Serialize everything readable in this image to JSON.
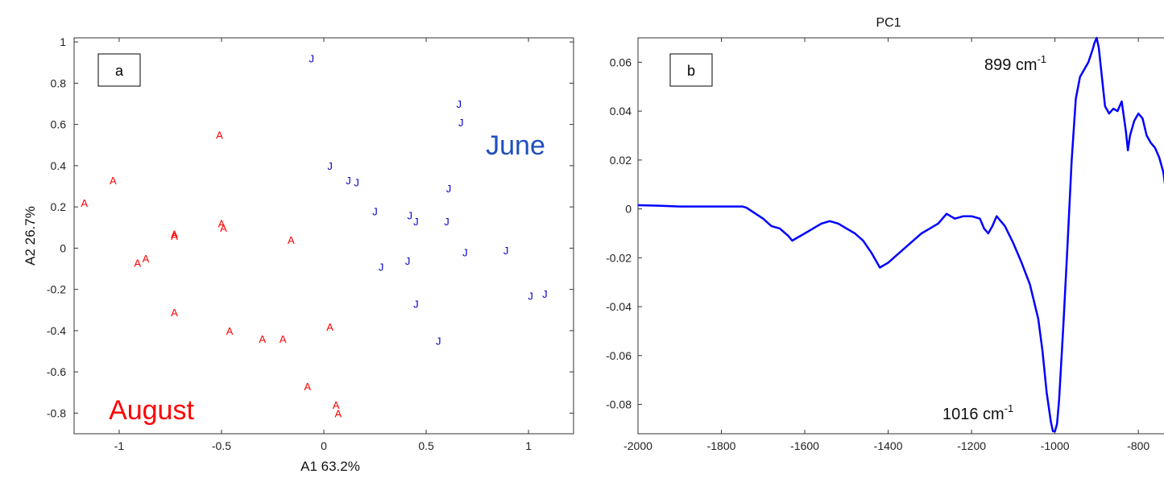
{
  "chart_data": [
    {
      "type": "scatter",
      "panel_label": "a",
      "xlabel": "A1  63.2%",
      "ylabel": "A2  26.7%",
      "xticks": [
        "-1",
        "-0.5",
        "0",
        "0.5",
        "1"
      ],
      "yticks": [
        "-0.8",
        "-0.6",
        "-0.4",
        "-0.2",
        "0",
        "0.2",
        "0.4",
        "0.6",
        "0.8",
        "1"
      ],
      "xlim": [
        -1.22,
        1.22
      ],
      "ylim": [
        -0.9,
        1.02
      ],
      "colors": {
        "August": "#ff0000",
        "June": "#0000cc"
      },
      "series": [
        {
          "name": "August",
          "marker": "A",
          "color": "#ff0000",
          "points": [
            [
              -1.17,
              0.22
            ],
            [
              -1.03,
              0.33
            ],
            [
              -0.91,
              -0.07
            ],
            [
              -0.87,
              -0.05
            ],
            [
              -0.73,
              0.07
            ],
            [
              -0.73,
              0.06
            ],
            [
              -0.73,
              -0.31
            ],
            [
              -0.51,
              0.55
            ],
            [
              -0.5,
              0.12
            ],
            [
              -0.49,
              0.1
            ],
            [
              -0.46,
              -0.4
            ],
            [
              -0.3,
              -0.44
            ],
            [
              -0.2,
              -0.44
            ],
            [
              -0.16,
              0.04
            ],
            [
              -0.08,
              -0.67
            ],
            [
              0.03,
              -0.38
            ],
            [
              0.06,
              -0.76
            ],
            [
              0.07,
              -0.8
            ]
          ]
        },
        {
          "name": "June",
          "marker": "J",
          "color": "#0000cc",
          "points": [
            [
              -0.06,
              0.92
            ],
            [
              0.03,
              0.4
            ],
            [
              0.12,
              0.33
            ],
            [
              0.16,
              0.32
            ],
            [
              0.25,
              0.18
            ],
            [
              0.28,
              -0.09
            ],
            [
              0.41,
              -0.06
            ],
            [
              0.42,
              0.16
            ],
            [
              0.45,
              0.13
            ],
            [
              0.45,
              -0.27
            ],
            [
              0.56,
              -0.45
            ],
            [
              0.6,
              0.13
            ],
            [
              0.61,
              0.29
            ],
            [
              0.66,
              0.7
            ],
            [
              0.67,
              0.61
            ],
            [
              0.69,
              -0.02
            ],
            [
              0.89,
              -0.01
            ],
            [
              1.01,
              -0.23
            ],
            [
              1.08,
              -0.22
            ]
          ]
        }
      ],
      "annotations": [
        {
          "text": "June",
          "color": "#1f4fbf"
        },
        {
          "text": "August",
          "color": "#ff0000"
        }
      ]
    },
    {
      "type": "line",
      "title": "PC1",
      "panel_label": "b",
      "xticks": [
        "-2000",
        "-1800",
        "-1600",
        "-1400",
        "-1200",
        "-1000",
        "-800"
      ],
      "yticks": [
        "0.06",
        "0.04",
        "0.02",
        "0",
        "-0.02",
        "-0.04",
        "-0.06",
        "-0.08"
      ],
      "xlim": [
        -2000,
        -725
      ],
      "ylim": [
        -0.092,
        0.07
      ],
      "color": "#0000ff",
      "annotations": [
        {
          "text": "899 cm",
          "sup": "-1"
        },
        {
          "text": "1016 cm",
          "sup": "-1"
        }
      ],
      "series": [
        {
          "x": [
            -2000,
            -1950,
            -1900,
            -1850,
            -1800,
            -1750,
            -1740,
            -1700,
            -1680,
            -1660,
            -1640,
            -1630,
            -1620,
            -1600,
            -1580,
            -1560,
            -1540,
            -1520,
            -1500,
            -1480,
            -1460,
            -1440,
            -1430,
            -1420,
            -1400,
            -1380,
            -1360,
            -1340,
            -1320,
            -1300,
            -1280,
            -1260,
            -1250,
            -1240,
            -1220,
            -1200,
            -1180,
            -1170,
            -1160,
            -1150,
            -1140,
            -1120,
            -1100,
            -1080,
            -1060,
            -1040,
            -1030,
            -1020,
            -1010,
            -1005,
            -1000,
            -995,
            -990,
            -980,
            -970,
            -960,
            -950,
            -940,
            -930,
            -920,
            -910,
            -905,
            -900,
            -895,
            -890,
            -880,
            -870,
            -860,
            -850,
            -840,
            -830,
            -825,
            -820,
            -810,
            -800,
            -790,
            -780,
            -770,
            -760,
            -750,
            -740,
            -730,
            -725
          ],
          "y": [
            0.0015,
            0.0013,
            0.001,
            0.001,
            0.001,
            0.001,
            0.0005,
            -0.004,
            -0.007,
            -0.008,
            -0.011,
            -0.013,
            -0.012,
            -0.01,
            -0.008,
            -0.006,
            -0.005,
            -0.006,
            -0.008,
            -0.01,
            -0.013,
            -0.018,
            -0.021,
            -0.024,
            -0.022,
            -0.019,
            -0.016,
            -0.013,
            -0.01,
            -0.008,
            -0.006,
            -0.002,
            -0.003,
            -0.004,
            -0.003,
            -0.003,
            -0.004,
            -0.008,
            -0.01,
            -0.007,
            -0.003,
            -0.007,
            -0.014,
            -0.022,
            -0.031,
            -0.045,
            -0.058,
            -0.075,
            -0.087,
            -0.091,
            -0.091,
            -0.088,
            -0.078,
            -0.048,
            -0.015,
            0.02,
            0.045,
            0.054,
            0.057,
            0.06,
            0.065,
            0.068,
            0.07,
            0.066,
            0.058,
            0.042,
            0.039,
            0.041,
            0.04,
            0.044,
            0.032,
            0.024,
            0.03,
            0.036,
            0.039,
            0.037,
            0.03,
            0.027,
            0.025,
            0.021,
            0.015,
            0.002,
            -0.002
          ]
        }
      ]
    }
  ]
}
